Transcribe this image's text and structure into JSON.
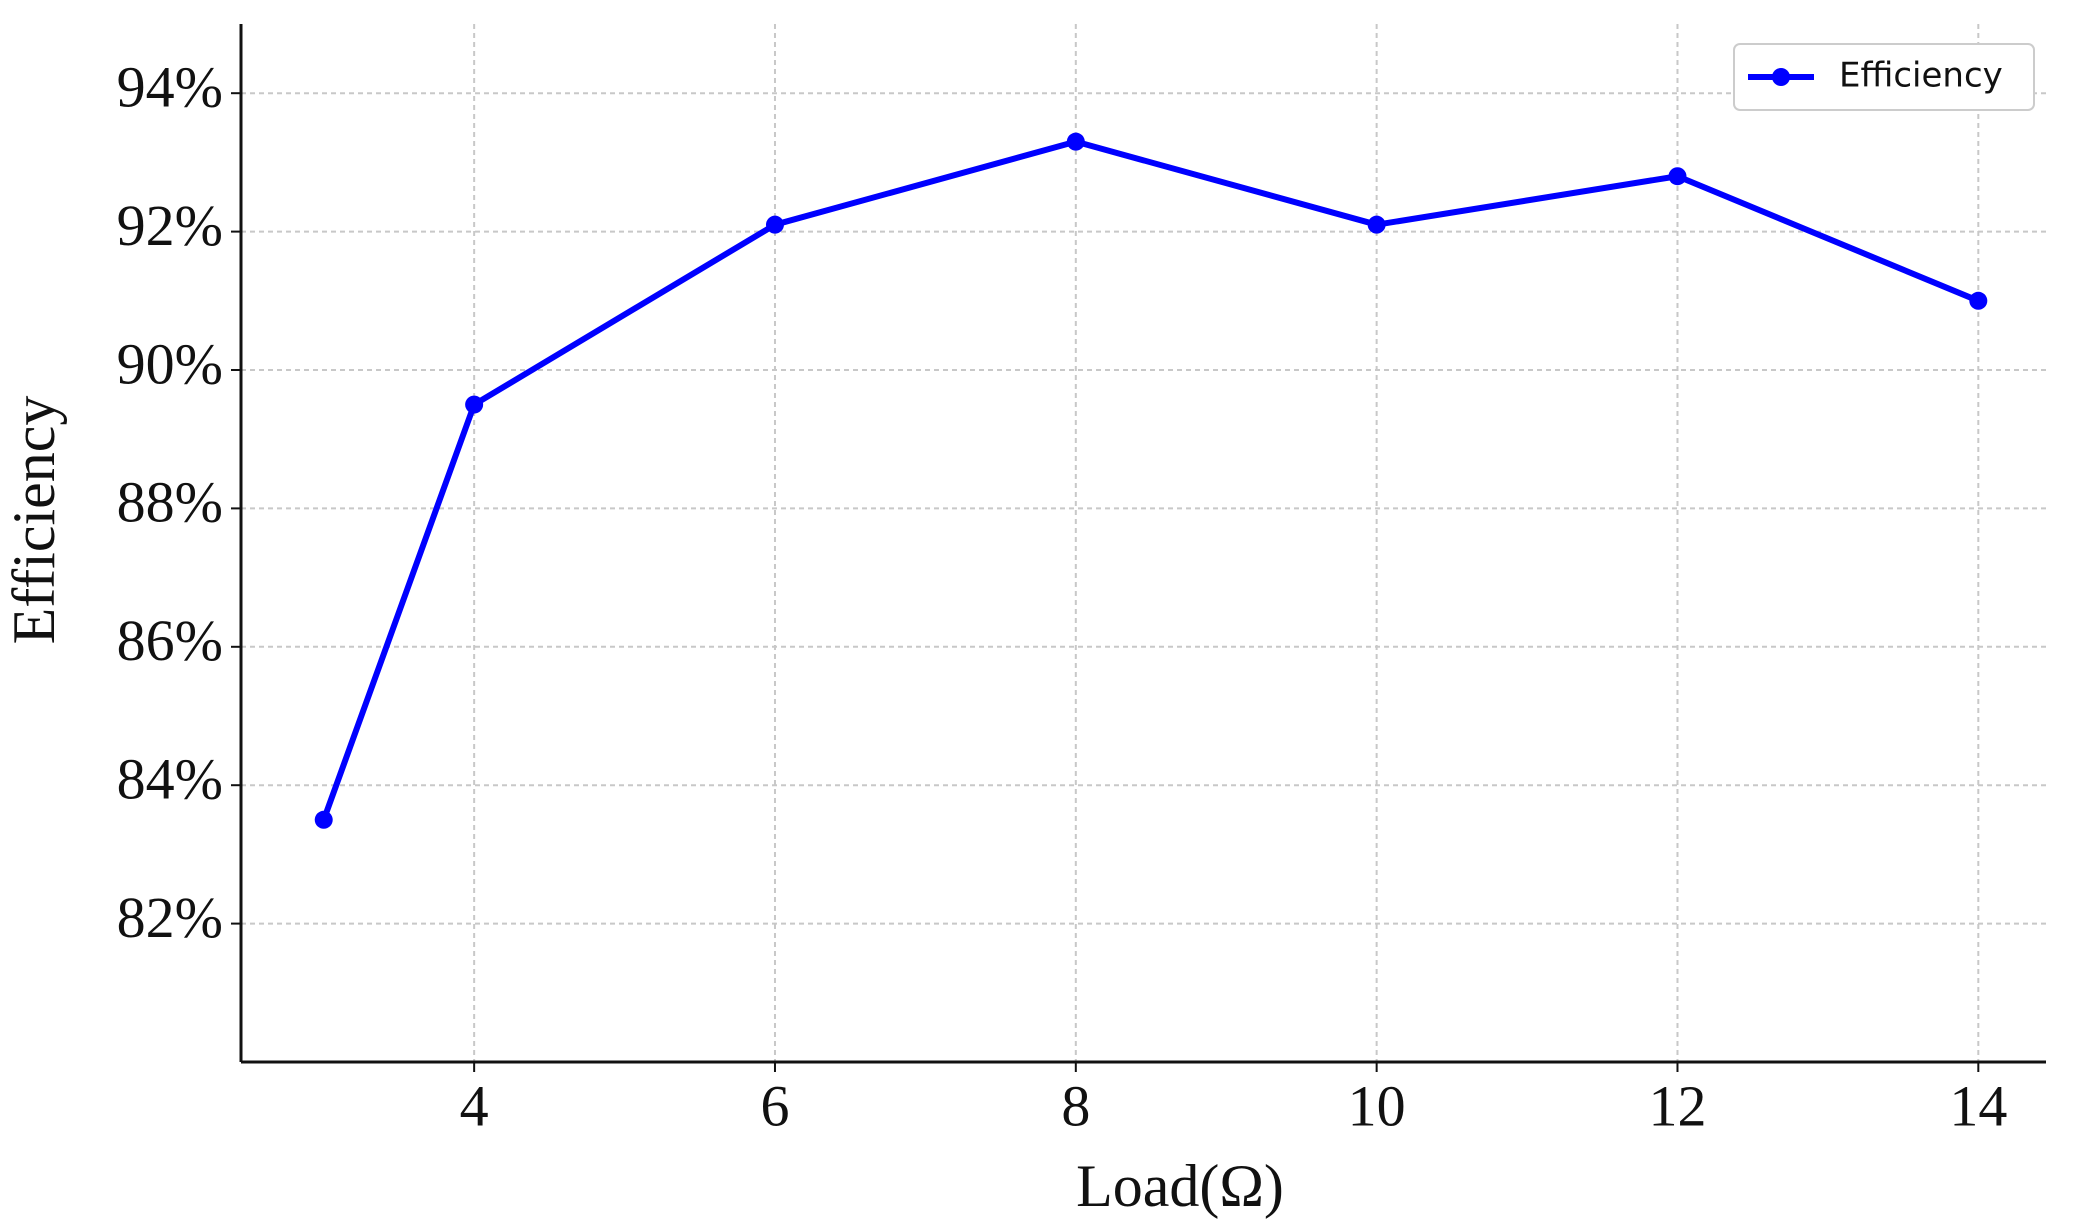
{
  "chart_data": {
    "type": "line",
    "xlabel": "Load(Ω)",
    "ylabel": "Efficiency",
    "x": [
      3,
      4,
      6,
      8,
      10,
      12,
      14
    ],
    "series": [
      {
        "name": "Efficiency",
        "color": "#0000ff",
        "values": [
          83.5,
          89.5,
          92.1,
          93.3,
          92.1,
          92.8,
          91.0
        ]
      }
    ],
    "xlim": [
      2.45,
      14.45
    ],
    "ylim": [
      80,
      95
    ],
    "xticks": [
      4,
      6,
      8,
      10,
      12,
      14
    ],
    "yticks": [
      {
        "value": 82,
        "label": "82%"
      },
      {
        "value": 84,
        "label": "84%"
      },
      {
        "value": 86,
        "label": "86%"
      },
      {
        "value": 88,
        "label": "88%"
      },
      {
        "value": 90,
        "label": "90%"
      },
      {
        "value": 92,
        "label": "92%"
      },
      {
        "value": 94,
        "label": "94%"
      }
    ],
    "grid": true,
    "legend": "upper right"
  }
}
